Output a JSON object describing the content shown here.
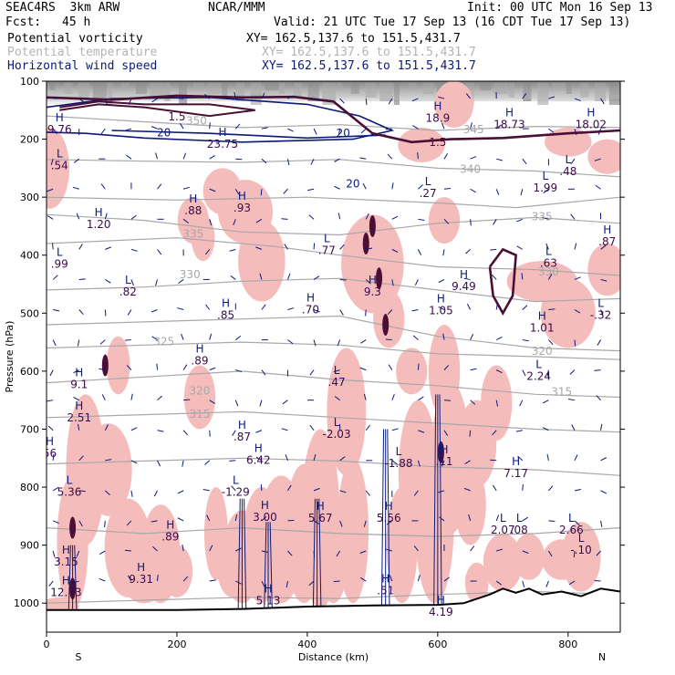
{
  "header": {
    "model": "SEAC4RS  3km ARW",
    "org": "NCAR/MMM",
    "init": "Init: 00 UTC Mon 16 Sep 13",
    "fcst_label": "Fcst:",
    "fcst_value": "45 h",
    "valid": "Valid: 21 UTC Tue 17 Sep 13 (16 CDT Tue 17 Sep 13)",
    "fields": [
      {
        "label": "Potential vorticity",
        "xy": "XY= 162.5,137.6 to 151.5,431.7",
        "color": "#000000"
      },
      {
        "label": "Potential temperature",
        "xy": "XY= 162.5,137.6 to 151.5,431.7",
        "color": "#b4b4b4"
      },
      {
        "label": "Horizontal wind speed",
        "xy": "XY= 162.5,137.6 to 151.5,431.7",
        "color": "#0b1a7a"
      }
    ]
  },
  "colors": {
    "pv_contour": "#4a0f35",
    "theta": "#a8a8a8",
    "wind": "#0b1a7a",
    "pink": "#f5bcbc",
    "terrain": "#000000"
  },
  "chart_data": {
    "type": "cross-section",
    "xlabel": "Distance (km)",
    "ylabel": "Pressure (hPa)",
    "xlim": [
      0,
      880
    ],
    "ylim": [
      1050,
      100
    ],
    "x_ticks": [
      0,
      200,
      400,
      600,
      800
    ],
    "y_ticks": [
      100,
      200,
      300,
      400,
      500,
      600,
      700,
      800,
      900,
      1000
    ],
    "endpoints": {
      "left": "S",
      "right": "N"
    },
    "theta_contours": [
      {
        "value": "350",
        "x": 230,
        "p": 175
      },
      {
        "value": "345",
        "x": 655,
        "p": 190
      },
      {
        "value": "340",
        "x": 650,
        "p": 258
      },
      {
        "value": "335",
        "x": 225,
        "p": 370
      },
      {
        "value": "330",
        "x": 220,
        "p": 440
      },
      {
        "value": "325",
        "x": 180,
        "p": 555
      },
      {
        "value": "320",
        "x": 235,
        "p": 640
      },
      {
        "value": "315",
        "x": 235,
        "p": 680
      },
      {
        "value": "335",
        "x": 760,
        "p": 340
      },
      {
        "value": "330",
        "x": 770,
        "p": 435
      },
      {
        "value": "320",
        "x": 760,
        "p": 572
      },
      {
        "value": "315",
        "x": 790,
        "p": 642
      }
    ],
    "wind_contours": [
      {
        "value": "20",
        "x": 180,
        "p": 195
      },
      {
        "value": "20",
        "x": 455,
        "p": 196
      },
      {
        "value": "20",
        "x": 470,
        "p": 283
      }
    ],
    "pv_contours": [
      {
        "value": "1.5",
        "x": 200,
        "p": 168
      },
      {
        "value": "1.5",
        "x": 600,
        "p": 212
      }
    ],
    "extrema_labels": [
      {
        "kind": "H",
        "value": "18.9",
        "x": 600,
        "p": 170
      },
      {
        "kind": "H",
        "value": "18.73",
        "x": 710,
        "p": 181
      },
      {
        "kind": "H",
        "value": "18.02",
        "x": 835,
        "p": 181
      },
      {
        "kind": "H",
        "value": "23.75",
        "x": 270,
        "p": 215
      },
      {
        "kind": "H",
        "value": "9.76",
        "x": 20,
        "p": 190
      },
      {
        "kind": "L",
        "value": ".54",
        "x": 20,
        "p": 252
      },
      {
        "kind": "L",
        "value": ".27",
        "x": 585,
        "p": 300
      },
      {
        "kind": "L",
        "value": "1.99",
        "x": 765,
        "p": 290
      },
      {
        "kind": "L",
        "value": ".48",
        "x": 800,
        "p": 262
      },
      {
        "kind": "H",
        "value": ".88",
        "x": 225,
        "p": 330
      },
      {
        "kind": "H",
        "value": ".93",
        "x": 300,
        "p": 325
      },
      {
        "kind": "H",
        "value": "1.20",
        "x": 80,
        "p": 353
      },
      {
        "kind": "L",
        "value": ".77",
        "x": 430,
        "p": 398
      },
      {
        "kind": "H",
        "value": ".87",
        "x": 860,
        "p": 383
      },
      {
        "kind": "L",
        "value": ".99",
        "x": 20,
        "p": 422
      },
      {
        "kind": "L",
        "value": ".82",
        "x": 125,
        "p": 470
      },
      {
        "kind": "L",
        "value": ".63",
        "x": 770,
        "p": 420
      },
      {
        "kind": "H",
        "value": "9.49",
        "x": 640,
        "p": 460
      },
      {
        "kind": "H",
        "value": "9.3",
        "x": 500,
        "p": 470
      },
      {
        "kind": "H",
        "value": ".85",
        "x": 275,
        "p": 510
      },
      {
        "kind": "H",
        "value": ".70",
        "x": 405,
        "p": 500
      },
      {
        "kind": "H",
        "value": "1.05",
        "x": 605,
        "p": 502
      },
      {
        "kind": "H",
        "value": "1.01",
        "x": 760,
        "p": 532
      },
      {
        "kind": "L",
        "value": "-.32",
        "x": 850,
        "p": 510
      },
      {
        "kind": "H",
        "value": ".89",
        "x": 235,
        "p": 588
      },
      {
        "kind": "L",
        "value": "2.24",
        "x": 755,
        "p": 615
      },
      {
        "kind": "H",
        "value": "9.1",
        "x": 50,
        "p": 629
      },
      {
        "kind": "L",
        "value": ".47",
        "x": 445,
        "p": 625
      },
      {
        "kind": "H",
        "value": "2.51",
        "x": 50,
        "p": 687
      },
      {
        "kind": "L",
        "value": "-2.03",
        "x": 445,
        "p": 715
      },
      {
        "kind": "H",
        "value": ".87",
        "x": 300,
        "p": 720
      },
      {
        "kind": "H",
        "value": "6.42",
        "x": 325,
        "p": 760
      },
      {
        "kind": "L",
        "value": "-1.88",
        "x": 540,
        "p": 765
      },
      {
        "kind": "H",
        "value": ".11",
        "x": 610,
        "p": 762
      },
      {
        "kind": "H",
        "value": "7.17",
        "x": 720,
        "p": 783
      },
      {
        "kind": "L",
        "value": "5.36",
        "x": 35,
        "p": 815
      },
      {
        "kind": "L",
        "value": "-1.29",
        "x": 290,
        "p": 815
      },
      {
        "kind": "H",
        "value": "3.00",
        "x": 335,
        "p": 858
      },
      {
        "kind": "H",
        "value": "5.67",
        "x": 420,
        "p": 860
      },
      {
        "kind": "H",
        "value": "5.56",
        "x": 525,
        "p": 860
      },
      {
        "kind": "L",
        "value": "2.07",
        "x": 700,
        "p": 880
      },
      {
        "kind": "L",
        "value": ".08",
        "x": 725,
        "p": 880
      },
      {
        "kind": "L",
        "value": "2.66",
        "x": 805,
        "p": 880
      },
      {
        "kind": "H",
        "value": ".89",
        "x": 190,
        "p": 892
      },
      {
        "kind": "L",
        "value": "-.10",
        "x": 820,
        "p": 915
      },
      {
        "kind": "H",
        "value": "3.15",
        "x": 30,
        "p": 935
      },
      {
        "kind": "H",
        "value": "9.31",
        "x": 145,
        "p": 965
      },
      {
        "kind": "H",
        "value": "12.73",
        "x": 30,
        "p": 988
      },
      {
        "kind": "H",
        "value": ".51",
        "x": 520,
        "p": 985
      },
      {
        "kind": "H",
        "value": "5.13",
        "x": 340,
        "p": 1002
      },
      {
        "kind": "H",
        "value": "4.19",
        "x": 605,
        "p": 1022
      },
      {
        "kind": "H",
        "value": "56",
        "x": 5,
        "p": 748
      }
    ]
  }
}
